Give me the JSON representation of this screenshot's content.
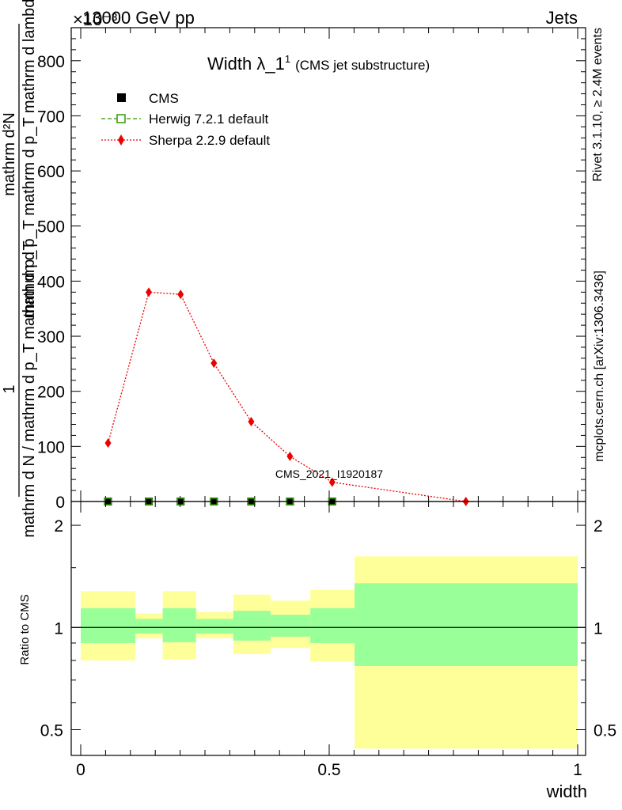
{
  "header": {
    "left": "13000 GeV pp",
    "right": "Jets",
    "exponent": "×10⁻³"
  },
  "title": {
    "main": "Width λ_1",
    "sup": "1",
    "sub": "(CMS jet substructure)"
  },
  "side": {
    "rivet": "Rivet 3.1.10, ≥ 2.4M events",
    "mcplots": "mcplots.cern.ch [arXiv:1306.3436]"
  },
  "watermark": "CMS_2021_I1920187",
  "axes": {
    "ylabel_main_numer": "mathrm d²N",
    "ylabel_main_denom": "mathrm d p_T mathrm d p_T mathrm d lambda",
    "ylabel_main_pre_numer": "1",
    "ylabel_main_pre_denom": "mathrm d N / mathrm d p_T mathrm d p_T",
    "ylabel_ratio": "Ratio to CMS",
    "xlabel": "width",
    "main_yticks": [
      "0",
      "100",
      "200",
      "300",
      "400",
      "500",
      "600",
      "700",
      "800"
    ],
    "ratio_yticks": [
      "0.5",
      "1",
      "2"
    ],
    "xticks": [
      "0",
      "0.5",
      "1"
    ]
  },
  "legend": [
    {
      "label": "CMS",
      "color": "#000000",
      "marker": "square-filled"
    },
    {
      "label": "Herwig 7.2.1 default",
      "color": "#339900",
      "marker": "square-open"
    },
    {
      "label": "Sherpa 2.2.9 default",
      "color": "#ee0000",
      "marker": "diamond"
    }
  ],
  "colors": {
    "band_outer": "#ffff99",
    "band_inner": "#99ff99",
    "sherpa": "#ee0000",
    "herwig": "#339900",
    "cms": "#000000"
  },
  "chart_data": [
    {
      "type": "line",
      "panel": "main",
      "xlim": [
        0,
        1
      ],
      "ylim": [
        0,
        860
      ],
      "y_scale": "×10⁻³",
      "series": [
        {
          "name": "CMS",
          "x": [
            0.055,
            0.137,
            0.201,
            0.268,
            0.343,
            0.421,
            0.506
          ],
          "y": [
            0,
            0,
            0,
            0,
            0,
            0,
            0
          ]
        },
        {
          "name": "Herwig 7.2.1 default",
          "x": [
            0.055,
            0.137,
            0.201,
            0.268,
            0.343,
            0.421,
            0.506
          ],
          "y": [
            0,
            0,
            0,
            0,
            0,
            0,
            0
          ]
        },
        {
          "name": "Sherpa 2.2.9 default",
          "x": [
            0.055,
            0.137,
            0.201,
            0.268,
            0.343,
            0.421,
            0.506,
            0.775
          ],
          "y": [
            106,
            380,
            376,
            251,
            145,
            82,
            35,
            0
          ]
        }
      ]
    },
    {
      "type": "area",
      "panel": "ratio",
      "y_scale": "log",
      "ylim": [
        0.42,
        2.35
      ],
      "reference": 1,
      "bins": [
        {
          "x0": 0.0,
          "x1": 0.11,
          "outer": [
            0.8,
            1.28
          ],
          "inner": [
            0.9,
            1.14
          ]
        },
        {
          "x0": 0.11,
          "x1": 0.165,
          "outer": [
            0.93,
            1.1
          ],
          "inner": [
            0.96,
            1.06
          ]
        },
        {
          "x0": 0.165,
          "x1": 0.232,
          "outer": [
            0.805,
            1.28
          ],
          "inner": [
            0.905,
            1.14
          ]
        },
        {
          "x0": 0.232,
          "x1": 0.307,
          "outer": [
            0.93,
            1.11
          ],
          "inner": [
            0.96,
            1.06
          ]
        },
        {
          "x0": 0.307,
          "x1": 0.382,
          "outer": [
            0.835,
            1.25
          ],
          "inner": [
            0.915,
            1.12
          ]
        },
        {
          "x0": 0.382,
          "x1": 0.462,
          "outer": [
            0.87,
            1.2
          ],
          "inner": [
            0.94,
            1.09
          ]
        },
        {
          "x0": 0.462,
          "x1": 0.551,
          "outer": [
            0.795,
            1.29
          ],
          "inner": [
            0.9,
            1.14
          ]
        },
        {
          "x0": 0.551,
          "x1": 1.0,
          "outer": [
            0.44,
            1.62
          ],
          "inner": [
            0.77,
            1.35
          ]
        }
      ]
    }
  ]
}
